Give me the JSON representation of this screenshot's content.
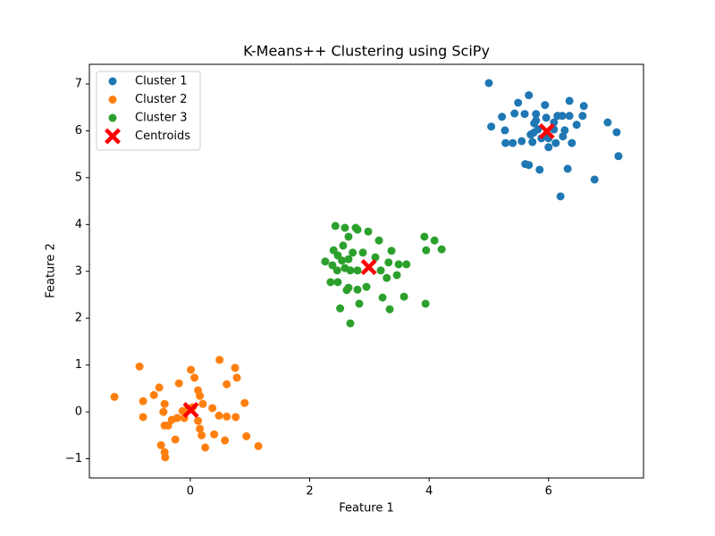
{
  "chart_data": {
    "type": "scatter",
    "title": "K-Means++ Clustering using SciPy",
    "x_label": "Feature 1",
    "y_label": "Feature 2",
    "xlim": [
      -1.69,
      7.59
    ],
    "ylim": [
      -1.41,
      7.42
    ],
    "xticks": [
      0,
      2,
      4,
      6
    ],
    "yticks": [
      {
        "value": -1,
        "label": "−1"
      },
      0,
      1,
      2,
      3,
      4,
      5,
      6,
      7
    ],
    "grid": false,
    "legend": "upper left",
    "series": [
      {
        "name": "Cluster 1",
        "color": "#1f77b4",
        "marker": "circle",
        "x": [
          5.0,
          5.67,
          5.49,
          6.35,
          5.94,
          6.59,
          5.43,
          5.22,
          6.15,
          5.79,
          5.96,
          6.23,
          6.35,
          6.57,
          6.99,
          5.04,
          5.27,
          5.76,
          5.82,
          6.09,
          6.27,
          6.47,
          7.14,
          5.7,
          5.97,
          6.24,
          6.0,
          5.28,
          5.4,
          5.55,
          5.73,
          5.88,
          6.12,
          6.39,
          6.0,
          5.67,
          5.61,
          5.85,
          6.32,
          7.17,
          6.77,
          6.2,
          5.6,
          5.79,
          5.75,
          6.09
        ],
        "y": [
          7.02,
          6.76,
          6.6,
          6.64,
          6.55,
          6.53,
          6.37,
          6.3,
          6.32,
          6.22,
          6.28,
          6.32,
          6.32,
          6.32,
          6.18,
          6.09,
          6.01,
          6.16,
          6.03,
          6.03,
          6.01,
          6.13,
          5.97,
          5.92,
          5.9,
          5.88,
          5.84,
          5.74,
          5.74,
          5.78,
          5.76,
          5.84,
          5.74,
          5.74,
          5.65,
          5.27,
          5.29,
          5.17,
          5.19,
          5.46,
          4.96,
          4.6,
          6.36,
          6.36,
          5.96,
          6.18
        ]
      },
      {
        "name": "Cluster 2",
        "color": "#ff7f0e",
        "marker": "circle",
        "x": [
          -1.27,
          -0.85,
          -0.79,
          -0.79,
          -0.52,
          -0.61,
          -0.43,
          -0.45,
          -0.43,
          -0.49,
          -0.43,
          -0.42,
          -0.25,
          -0.31,
          -0.19,
          -0.13,
          -0.1,
          0.01,
          0.07,
          0.13,
          0.16,
          0.21,
          0.13,
          0.16,
          0.19,
          0.25,
          0.37,
          0.4,
          0.48,
          0.49,
          0.61,
          0.61,
          0.75,
          0.78,
          0.76,
          0.58,
          0.91,
          0.94,
          1.14,
          -0.22,
          -0.04,
          0.04,
          -0.37
        ],
        "y": [
          0.32,
          0.97,
          0.23,
          -0.11,
          0.52,
          0.36,
          0.17,
          0.0,
          -0.29,
          -0.71,
          -0.86,
          -0.97,
          -0.59,
          -0.17,
          0.61,
          0.02,
          -0.13,
          0.9,
          0.73,
          0.46,
          0.34,
          0.17,
          -0.19,
          -0.36,
          -0.5,
          -0.76,
          0.08,
          -0.48,
          -0.08,
          1.11,
          -0.1,
          0.59,
          0.94,
          0.73,
          -0.11,
          -0.61,
          0.19,
          -0.52,
          -0.73,
          -0.13,
          0.06,
          0.1,
          -0.29
        ]
      },
      {
        "name": "Cluster 3",
        "color": "#2ca02c",
        "marker": "circle",
        "x": [
          2.43,
          2.59,
          2.77,
          2.98,
          2.8,
          2.65,
          2.56,
          3.16,
          2.4,
          2.47,
          2.72,
          2.89,
          3.37,
          3.32,
          2.26,
          2.38,
          2.54,
          2.65,
          3.49,
          3.62,
          2.46,
          2.59,
          2.68,
          2.8,
          3.19,
          3.46,
          3.29,
          2.35,
          2.47,
          2.65,
          2.62,
          2.8,
          2.95,
          3.58,
          3.22,
          2.83,
          2.51,
          3.34,
          3.92,
          4.09,
          4.21,
          3.95,
          3.94,
          2.68,
          3.1
        ],
        "y": [
          3.97,
          3.93,
          3.93,
          3.85,
          3.89,
          3.74,
          3.55,
          3.66,
          3.45,
          3.34,
          3.4,
          3.4,
          3.44,
          3.19,
          3.21,
          3.13,
          3.23,
          3.26,
          3.15,
          3.15,
          3.02,
          3.07,
          3.02,
          3.02,
          3.02,
          2.92,
          2.86,
          2.77,
          2.77,
          2.65,
          2.6,
          2.61,
          2.67,
          2.46,
          2.44,
          2.31,
          2.21,
          2.19,
          3.74,
          3.66,
          3.47,
          3.45,
          2.31,
          1.89,
          3.3
        ]
      },
      {
        "name": "Centroids",
        "color": "#ff0000",
        "marker": "x",
        "x": [
          5.97,
          0.01,
          2.99
        ],
        "y": [
          5.99,
          0.04,
          3.09
        ]
      }
    ]
  }
}
